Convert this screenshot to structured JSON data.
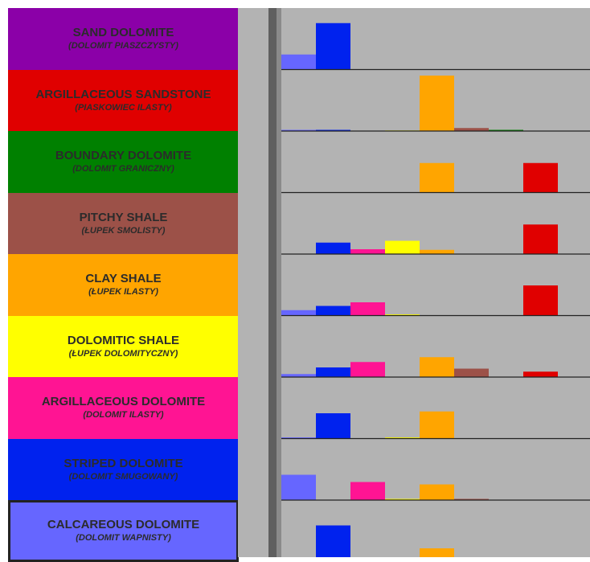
{
  "chart_data": {
    "type": "bar",
    "description_of_axes": "",
    "categories": [
      "Calcareous Dolomite",
      "Striped Dolomite",
      "Argillaceous Dolomite",
      "Dolomitic Shale",
      "Clay Shale",
      "Pitchy Shale",
      "Boundary Dolomite",
      "Argillaceous Sandstone"
    ],
    "colors": [
      "#6666ff",
      "#0022ee",
      "#ff1493",
      "#ffff00",
      "#ffa500",
      "#9c5148",
      "#008000",
      "#e00000"
    ],
    "rows": [
      {
        "id": "sand-dolomite",
        "label": "SAND DOLOMITE",
        "sublabel": "(DOLOMIT PIASZCZYSTY)",
        "color": "#8b00a8",
        "values": [
          0.25,
          0.77,
          0,
          0,
          0,
          0,
          0,
          0
        ]
      },
      {
        "id": "argillaceous-sandstone",
        "label": "ARGILLACEOUS SANDSTONE",
        "sublabel": "(PIASKOWIEC ILASTY)",
        "color": "#e00000",
        "values": [
          0.02,
          0.02,
          0,
          0.01,
          0.92,
          0.05,
          0.02,
          0
        ]
      },
      {
        "id": "boundary-dolomite",
        "label": "BOUNDARY DOLOMITE",
        "sublabel": "(DOLOMIT GRANICZNY)",
        "color": "#008000",
        "values": [
          0,
          0,
          0,
          0,
          0.49,
          0,
          0,
          0.49
        ]
      },
      {
        "id": "pitchy-shale",
        "label": "PITCHY SHALE",
        "sublabel": "(ŁUPEK SMOLISTY)",
        "color": "#9c5148",
        "values": [
          0,
          0.19,
          0.08,
          0.22,
          0.07,
          0,
          0,
          0.49
        ]
      },
      {
        "id": "clay-shale",
        "label": "CLAY SHALE",
        "sublabel": "(ŁUPEK ILASTY)",
        "color": "#ffa500",
        "values": [
          0.09,
          0.16,
          0.22,
          0.02,
          0,
          0,
          0,
          0.5
        ]
      },
      {
        "id": "dolomitic-shale",
        "label": "DOLOMITIC SHALE",
        "sublabel": "(ŁUPEK DOLOMITYCZNY)",
        "color": "#ffff00",
        "values": [
          0.05,
          0.16,
          0.25,
          0,
          0.33,
          0.14,
          0,
          0.09
        ]
      },
      {
        "id": "argillaceous-dolomite",
        "label": "ARGILLACEOUS DOLOMITE",
        "sublabel": "(DOLOMIT ILASTY)",
        "color": "#ff1493",
        "values": [
          0.02,
          0.42,
          0,
          0.02,
          0.45,
          0,
          0,
          0
        ]
      },
      {
        "id": "striped-dolomite",
        "label": "STRIPED DOLOMITE",
        "sublabel": "(DOLOMIT SMUGOWANY)",
        "color": "#0022ee",
        "values": [
          0.42,
          0,
          0.3,
          0.02,
          0.26,
          0.02,
          0,
          0
        ]
      },
      {
        "id": "calcareous-dolomite",
        "label": "CALCAREOUS DOLOMITE",
        "sublabel": "(DOLOMIT WAPNISTY)",
        "color": "#6666ff",
        "values": [
          0,
          0.6,
          0.04,
          0,
          0.22,
          0,
          0,
          0
        ]
      }
    ],
    "ylim": [
      0,
      1
    ],
    "grid": false,
    "legend": "left"
  }
}
